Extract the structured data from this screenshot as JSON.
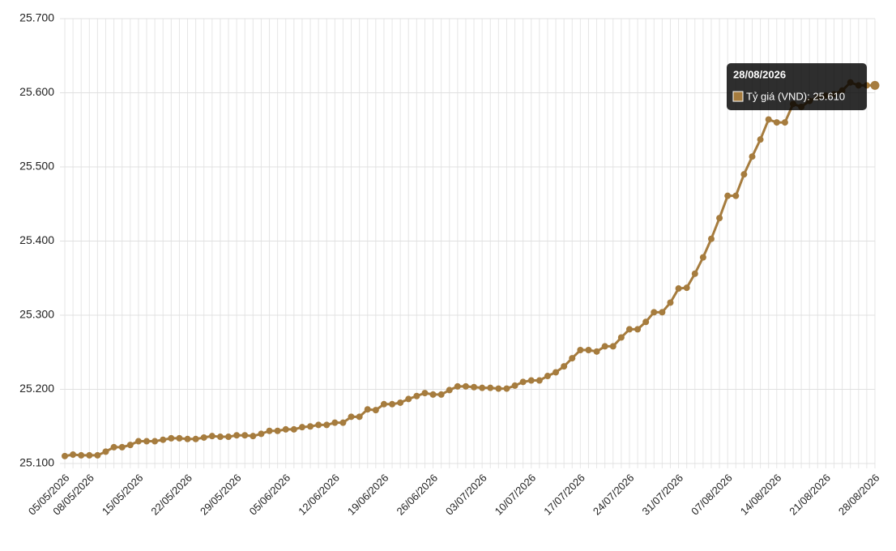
{
  "chart_data": {
    "type": "line",
    "categories": [
      "05/05/2026",
      null,
      null,
      "08/05/2026",
      null,
      null,
      null,
      null,
      null,
      "15/05/2026",
      null,
      null,
      null,
      null,
      null,
      "22/05/2026",
      null,
      null,
      null,
      null,
      null,
      "29/05/2026",
      null,
      null,
      null,
      null,
      null,
      "05/06/2026",
      null,
      null,
      null,
      null,
      null,
      "12/06/2026",
      null,
      null,
      null,
      null,
      null,
      "19/06/2026",
      null,
      null,
      null,
      null,
      null,
      "26/06/2026",
      null,
      null,
      null,
      null,
      null,
      "03/07/2026",
      null,
      null,
      null,
      null,
      null,
      "10/07/2026",
      null,
      null,
      null,
      null,
      null,
      "17/07/2026",
      null,
      null,
      null,
      null,
      null,
      "24/07/2026",
      null,
      null,
      null,
      null,
      null,
      "31/07/2026",
      null,
      null,
      null,
      null,
      null,
      "07/08/2026",
      null,
      null,
      null,
      null,
      null,
      "14/08/2026",
      null,
      null,
      null,
      null,
      null,
      "21/08/2026",
      null,
      null,
      null,
      null,
      null,
      "28/08/2026"
    ],
    "series": [
      {
        "color": "#a67c3e",
        "values": [
          25110,
          25112,
          25111,
          25111,
          25111,
          25116,
          25122,
          25122,
          25125,
          25130,
          25130,
          25130,
          25132,
          25134,
          25134,
          25133,
          25133,
          25135,
          25137,
          25136,
          25136,
          25138,
          25138,
          25137,
          25140,
          25144,
          25144,
          25146,
          25146,
          25149,
          25150,
          25152,
          25152,
          25155,
          25155,
          25163,
          25163,
          25173,
          25172,
          25180,
          25180,
          25182,
          25187,
          25191,
          25195,
          25193,
          25193,
          25199,
          25204,
          25204,
          25203,
          25202,
          25202,
          25201,
          25201,
          25205,
          25210,
          25212,
          25212,
          25218,
          25223,
          25231,
          25242,
          25253,
          25253,
          25251,
          25258,
          25258,
          25270,
          25281,
          25281,
          25291,
          25304,
          25304,
          25317,
          25336,
          25337,
          25356,
          25378,
          25403,
          25431,
          25461,
          25461,
          25490,
          25514,
          25537,
          25564,
          25560,
          25560,
          25585,
          25581,
          25589,
          25594,
          25596,
          25598,
          25603,
          25614,
          25610,
          25610,
          25610
        ]
      }
    ],
    "ylim": [
      25100,
      25700
    ],
    "yticks": [
      {
        "value": 25100,
        "label": "25.100"
      },
      {
        "value": 25200,
        "label": "25.200"
      },
      {
        "value": 25300,
        "label": "25.300"
      },
      {
        "value": 25400,
        "label": "25.400"
      },
      {
        "value": 25500,
        "label": "25.500"
      },
      {
        "value": 25600,
        "label": "25.600"
      },
      {
        "value": 25700,
        "label": "25.700"
      }
    ],
    "grid": true,
    "tooltip": {
      "title": "28/08/2026",
      "text": "Tỷ giá (VND): 25.610"
    }
  }
}
